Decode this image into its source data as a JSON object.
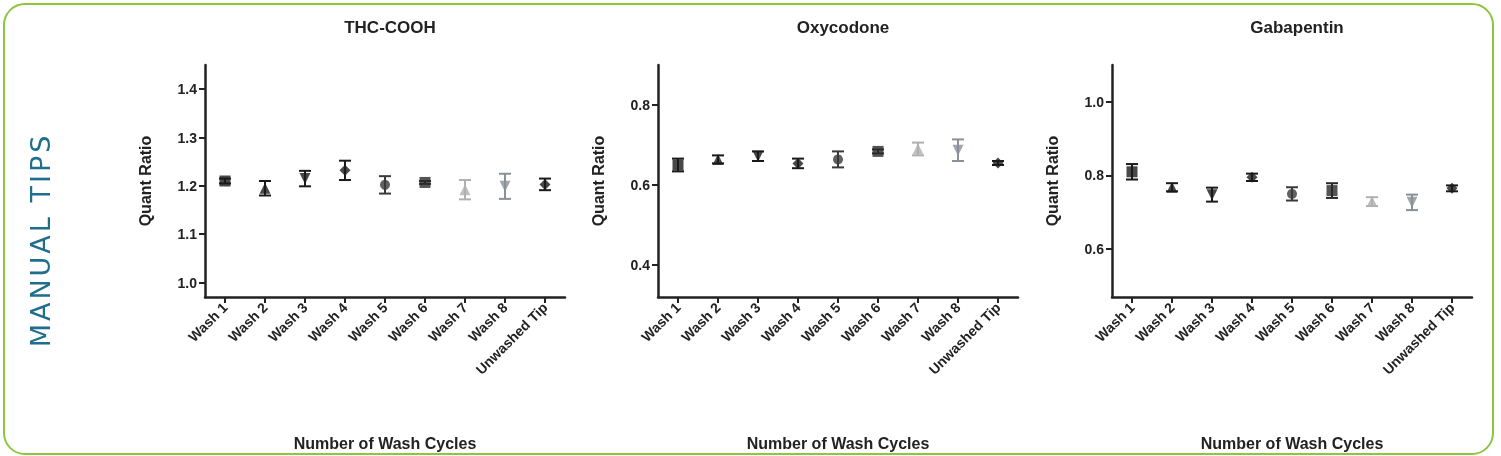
{
  "chart_data": [
    {
      "type": "scatter",
      "title": "THC-COOH",
      "xlabel": "Number of Wash Cycles",
      "ylabel": "Quant Ratio",
      "annotations": [
        "MANUAL TIPS"
      ],
      "categories": [
        "Wash 1",
        "Wash 2",
        "Wash 3",
        "Wash 4",
        "Wash 5",
        "Wash 6",
        "Wash 7",
        "Wash 8",
        "Unwashed Tip"
      ],
      "ylim": [
        0.97,
        1.45
      ],
      "yticks": [
        {
          "value": 1,
          "label": "1.0"
        },
        1.1,
        1.2,
        1.3,
        1.4
      ],
      "series": [
        {
          "x": [
            "Wash 1"
          ],
          "values": [
            1.21
          ],
          "errors": [
            0.005
          ],
          "marker": "square",
          "color": "#1a1a1a"
        },
        {
          "x": [
            "Wash 2"
          ],
          "values": [
            1.195
          ],
          "errors": [
            0.015
          ],
          "marker": "triangle",
          "color": "#1a1a1a"
        },
        {
          "x": [
            "Wash 3"
          ],
          "values": [
            1.215
          ],
          "errors": [
            0.016
          ],
          "marker": "triangle-down",
          "color": "#1a1a1a"
        },
        {
          "x": [
            "Wash 4"
          ],
          "values": [
            1.232
          ],
          "errors": [
            0.02
          ],
          "marker": "diamond",
          "color": "#1a1a1a"
        },
        {
          "x": [
            "Wash 5"
          ],
          "values": [
            1.202
          ],
          "errors": [
            0.018
          ],
          "marker": "circle",
          "color": "#3a3a3a"
        },
        {
          "x": [
            "Wash 6"
          ],
          "values": [
            1.207
          ],
          "errors": [
            0.003
          ],
          "marker": "square",
          "color": "#2a2a2a"
        },
        {
          "x": [
            "Wash 7"
          ],
          "values": [
            1.192
          ],
          "errors": [
            0.02
          ],
          "marker": "triangle",
          "color": "#b0b0b0"
        },
        {
          "x": [
            "Wash 8"
          ],
          "values": [
            1.199
          ],
          "errors": [
            0.026
          ],
          "marker": "triangle-down",
          "color": "#8a9099"
        },
        {
          "x": [
            "Unwashed Tip"
          ],
          "values": [
            1.203
          ],
          "errors": [
            0.012
          ],
          "marker": "diamond",
          "color": "#1a1a1a"
        }
      ]
    },
    {
      "type": "scatter",
      "title": "Oxycodone",
      "xlabel": "Number of Wash Cycles",
      "ylabel": "Quant Ratio",
      "categories": [
        "Wash 1",
        "Wash 2",
        "Wash 3",
        "Wash 4",
        "Wash 5",
        "Wash 6",
        "Wash 7",
        "Wash 8",
        "Unwashed Tip"
      ],
      "ylim": [
        0.32,
        0.9
      ],
      "yticks": [
        0.4,
        0.6,
        0.8
      ],
      "series": [
        {
          "x": [
            "Wash 1"
          ],
          "values": [
            0.65
          ],
          "errors": [
            0.016
          ],
          "marker": "square",
          "color": "#1a1a1a"
        },
        {
          "x": [
            "Wash 2"
          ],
          "values": [
            0.664
          ],
          "errors": [
            0.01
          ],
          "marker": "triangle",
          "color": "#1a1a1a"
        },
        {
          "x": [
            "Wash 3"
          ],
          "values": [
            0.672
          ],
          "errors": [
            0.012
          ],
          "marker": "triangle-down",
          "color": "#1a1a1a"
        },
        {
          "x": [
            "Wash 4"
          ],
          "values": [
            0.654
          ],
          "errors": [
            0.012
          ],
          "marker": "diamond",
          "color": "#1a1a1a"
        },
        {
          "x": [
            "Wash 5"
          ],
          "values": [
            0.664
          ],
          "errors": [
            0.02
          ],
          "marker": "circle",
          "color": "#3a3a3a"
        },
        {
          "x": [
            "Wash 6"
          ],
          "values": [
            0.684
          ],
          "errors": [
            0.005
          ],
          "marker": "square",
          "color": "#2a2a2a"
        },
        {
          "x": [
            "Wash 7"
          ],
          "values": [
            0.69
          ],
          "errors": [
            0.016
          ],
          "marker": "triangle",
          "color": "#b0b0b0"
        },
        {
          "x": [
            "Wash 8"
          ],
          "values": [
            0.687
          ],
          "errors": [
            0.027
          ],
          "marker": "triangle-down",
          "color": "#8a9099"
        },
        {
          "x": [
            "Unwashed Tip"
          ],
          "values": [
            0.655
          ],
          "errors": [
            0.005
          ],
          "marker": "diamond",
          "color": "#1a1a1a"
        }
      ]
    },
    {
      "type": "scatter",
      "title": "Gabapentin",
      "xlabel": "Number of Wash Cycles",
      "ylabel": "Quant Ratio",
      "categories": [
        "Wash 1",
        "Wash 2",
        "Wash 3",
        "Wash 4",
        "Wash 5",
        "Wash 6",
        "Wash 7",
        "Wash 8",
        "Unwashed Tip"
      ],
      "ylim": [
        0.47,
        1.1
      ],
      "yticks": [
        0.6,
        0.8,
        {
          "value": 1,
          "label": "1.0"
        }
      ],
      "series": [
        {
          "x": [
            "Wash 1"
          ],
          "values": [
            0.81
          ],
          "errors": [
            0.021
          ],
          "marker": "square",
          "color": "#1a1a1a"
        },
        {
          "x": [
            "Wash 2"
          ],
          "values": [
            0.768
          ],
          "errors": [
            0.011
          ],
          "marker": "triangle",
          "color": "#1a1a1a"
        },
        {
          "x": [
            "Wash 3"
          ],
          "values": [
            0.748
          ],
          "errors": [
            0.019
          ],
          "marker": "triangle-down",
          "color": "#1a1a1a"
        },
        {
          "x": [
            "Wash 4"
          ],
          "values": [
            0.795
          ],
          "errors": [
            0.01
          ],
          "marker": "diamond",
          "color": "#1a1a1a"
        },
        {
          "x": [
            "Wash 5"
          ],
          "values": [
            0.75
          ],
          "errors": [
            0.018
          ],
          "marker": "circle",
          "color": "#3a3a3a"
        },
        {
          "x": [
            "Wash 6"
          ],
          "values": [
            0.759
          ],
          "errors": [
            0.02
          ],
          "marker": "square",
          "color": "#2a2a2a"
        },
        {
          "x": [
            "Wash 7"
          ],
          "values": [
            0.729
          ],
          "errors": [
            0.012
          ],
          "marker": "triangle",
          "color": "#b0b0b0"
        },
        {
          "x": [
            "Wash 8"
          ],
          "values": [
            0.727
          ],
          "errors": [
            0.021
          ],
          "marker": "triangle-down",
          "color": "#8a9099"
        },
        {
          "x": [
            "Unwashed Tip"
          ],
          "values": [
            0.765
          ],
          "errors": [
            0.008
          ],
          "marker": "diamond",
          "color": "#1a1a1a"
        }
      ]
    }
  ]
}
